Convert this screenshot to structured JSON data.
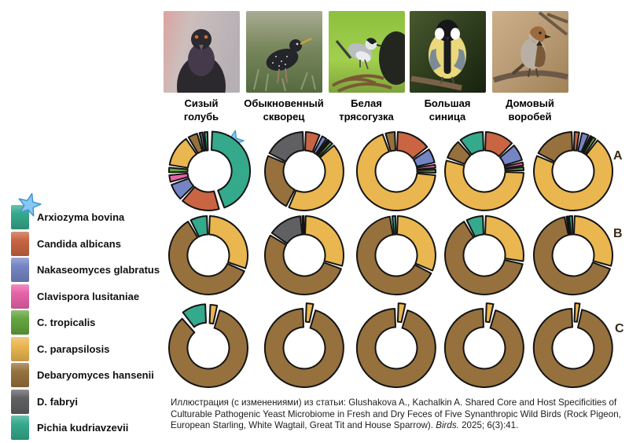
{
  "legend": {
    "items": [
      {
        "label": "Arxiozyma bovina",
        "color": "#35a98c",
        "starred": true
      },
      {
        "label": "Candida albicans",
        "color": "#c96542",
        "starred": false
      },
      {
        "label": "Nakaseomyces glabratus",
        "color": "#7585c4",
        "starred": false
      },
      {
        "label": "Clavispora lusitaniae",
        "color": "#e763a9",
        "starred": false
      },
      {
        "label": "C. tropicalis",
        "color": "#64a53e",
        "starred": false
      },
      {
        "label": "C. parapsilosis",
        "color": "#eab64f",
        "starred": false
      },
      {
        "label": "Debaryomyces hansenii",
        "color": "#96713d",
        "starred": false
      },
      {
        "label": "D. fabryi",
        "color": "#606063",
        "starred": false
      },
      {
        "label": "Pichia kudriavzevii",
        "color": "#35a98c",
        "starred": false
      }
    ]
  },
  "birds": [
    {
      "name1": "Сизый",
      "name2": "голубь"
    },
    {
      "name1": "Обыкновенный",
      "name2": "скворец"
    },
    {
      "name1": "Белая",
      "name2": "трясогузка"
    },
    {
      "name1": "Большая",
      "name2": "синица"
    },
    {
      "name1": "Домовый",
      "name2": "воробей"
    }
  ],
  "palette": {
    "outline": "#141414",
    "star_fill": "#85c8f2",
    "star_stroke": "#3e93cf"
  },
  "chart_data": {
    "type": "pie",
    "variant": "exploded-donut-grid",
    "unit": "percent (estimated from segment angles)",
    "legend_position": "left",
    "columns": [
      "Сизый голубь",
      "Обыкновенный скворец",
      "Белая трясогузка",
      "Большая синица",
      "Домовый воробей"
    ],
    "rows": [
      {
        "label": "A",
        "donuts": [
          {
            "bird": "Rock Pigeon",
            "segments": [
              {
                "species": "Arxiozyma bovina",
                "pct": 45,
                "explode": 3,
                "starred": true
              },
              {
                "species": "Candida albicans",
                "pct": 17
              },
              {
                "species": "Nakaseomyces glabratus",
                "pct": 8
              },
              {
                "species": "Clavispora lusitaniae",
                "pct": 4
              },
              {
                "species": "C. tropicalis",
                "pct": 3
              },
              {
                "species": "C. parapsilosis",
                "pct": 14
              },
              {
                "species": "Debaryomyces hansenii",
                "pct": 5
              },
              {
                "species": "D. fabryi",
                "pct": 2
              },
              {
                "species": "Pichia kudriavzevii",
                "pct": 2
              }
            ]
          },
          {
            "bird": "European Starling",
            "segments": [
              {
                "species": "Candida albicans",
                "pct": 7
              },
              {
                "species": "Nakaseomyces glabratus",
                "pct": 3
              },
              {
                "species": "Clavispora lusitaniae",
                "pct": 1
              },
              {
                "species": "C. tropicalis",
                "pct": 2
              },
              {
                "species": "C. parapsilosis",
                "pct": 44
              },
              {
                "species": "Debaryomyces hansenii",
                "pct": 25
              },
              {
                "species": "D. fabryi",
                "pct": 18
              }
            ]
          },
          {
            "bird": "White Wagtail",
            "segments": [
              {
                "species": "Candida albicans",
                "pct": 15
              },
              {
                "species": "Nakaseomyces glabratus",
                "pct": 7
              },
              {
                "species": "Clavispora lusitaniae",
                "pct": 2
              },
              {
                "species": "C. tropicalis",
                "pct": 2
              },
              {
                "species": "C. parapsilosis",
                "pct": 69
              },
              {
                "species": "Debaryomyces hansenii",
                "pct": 5
              }
            ]
          },
          {
            "bird": "Great Tit",
            "segments": [
              {
                "species": "Candida albicans",
                "pct": 13
              },
              {
                "species": "Nakaseomyces glabratus",
                "pct": 8
              },
              {
                "species": "Clavispora lusitaniae",
                "pct": 2
              },
              {
                "species": "C. tropicalis",
                "pct": 2
              },
              {
                "species": "C. parapsilosis",
                "pct": 55
              },
              {
                "species": "Debaryomyces hansenii",
                "pct": 9
              },
              {
                "species": "Pichia kudriavzevii",
                "pct": 11
              }
            ]
          },
          {
            "bird": "House Sparrow",
            "segments": [
              {
                "species": "Candida albicans",
                "pct": 3
              },
              {
                "species": "Nakaseomyces glabratus",
                "pct": 4
              },
              {
                "species": "Clavispora lusitaniae",
                "pct": 1
              },
              {
                "species": "C. tropicalis",
                "pct": 2
              },
              {
                "species": "C. parapsilosis",
                "pct": 72
              },
              {
                "species": "Debaryomyces hansenii",
                "pct": 18
              }
            ]
          }
        ]
      },
      {
        "label": "B",
        "donuts": [
          {
            "bird": "Rock Pigeon",
            "segments": [
              {
                "species": "C. parapsilosis",
                "pct": 31
              },
              {
                "species": "Debaryomyces hansenii",
                "pct": 61
              },
              {
                "species": "Pichia kudriavzevii",
                "pct": 8
              }
            ]
          },
          {
            "bird": "European Starling",
            "segments": [
              {
                "species": "C. parapsilosis",
                "pct": 30
              },
              {
                "species": "Debaryomyces hansenii",
                "pct": 54
              },
              {
                "species": "D. fabryi",
                "pct": 15
              },
              {
                "species": "Pichia kudriavzevii",
                "pct": 1
              }
            ]
          },
          {
            "bird": "White Wagtail",
            "segments": [
              {
                "species": "C. parapsilosis",
                "pct": 32
              },
              {
                "species": "Debaryomyces hansenii",
                "pct": 66
              },
              {
                "species": "Pichia kudriavzevii",
                "pct": 2
              }
            ]
          },
          {
            "bird": "Great Tit",
            "segments": [
              {
                "species": "C. parapsilosis",
                "pct": 28
              },
              {
                "species": "Debaryomyces hansenii",
                "pct": 64
              },
              {
                "species": "Pichia kudriavzevii",
                "pct": 8
              }
            ]
          },
          {
            "bird": "House Sparrow",
            "segments": [
              {
                "species": "C. parapsilosis",
                "pct": 30
              },
              {
                "species": "Debaryomyces hansenii",
                "pct": 67
              },
              {
                "species": "D. fabryi",
                "pct": 1
              },
              {
                "species": "Pichia kudriavzevii",
                "pct": 2
              }
            ]
          }
        ]
      },
      {
        "label": "C",
        "donuts": [
          {
            "bird": "Rock Pigeon",
            "segments": [
              {
                "species": "C. parapsilosis",
                "pct": 4,
                "explode": 5
              },
              {
                "species": "Debaryomyces hansenii",
                "pct": 85
              },
              {
                "species": "Pichia kudriavzevii",
                "pct": 11,
                "explode": 6
              }
            ]
          },
          {
            "bird": "European Starling",
            "segments": [
              {
                "species": "C. parapsilosis",
                "pct": 4,
                "explode": 7
              },
              {
                "species": "Debaryomyces hansenii",
                "pct": 96
              }
            ]
          },
          {
            "bird": "White Wagtail",
            "segments": [
              {
                "species": "C. parapsilosis",
                "pct": 4,
                "explode": 7
              },
              {
                "species": "Debaryomyces hansenii",
                "pct": 96
              }
            ]
          },
          {
            "bird": "Great Tit",
            "segments": [
              {
                "species": "C. parapsilosis",
                "pct": 4,
                "explode": 7
              },
              {
                "species": "Debaryomyces hansenii",
                "pct": 96
              }
            ]
          },
          {
            "bird": "House Sparrow",
            "segments": [
              {
                "species": "C. parapsilosis",
                "pct": 3,
                "explode": 7
              },
              {
                "species": "Debaryomyces hansenii",
                "pct": 97
              }
            ]
          }
        ]
      }
    ]
  },
  "caption": {
    "text_before_journal": "Иллюстрация (с изменениями) из статьи: Glushakova A., Kachalkin A. Shared Core and Host Specificities of Culturable Pathogenic Yeast Microbiome in Fresh and Dry Feces of Five Synanthropic Wild Birds (Rock Pigeon, European Starling, White Wagtail, Great Tit and House Sparrow). ",
    "journal": "Birds.",
    "text_after_journal": " 2025; 6(3):41."
  }
}
